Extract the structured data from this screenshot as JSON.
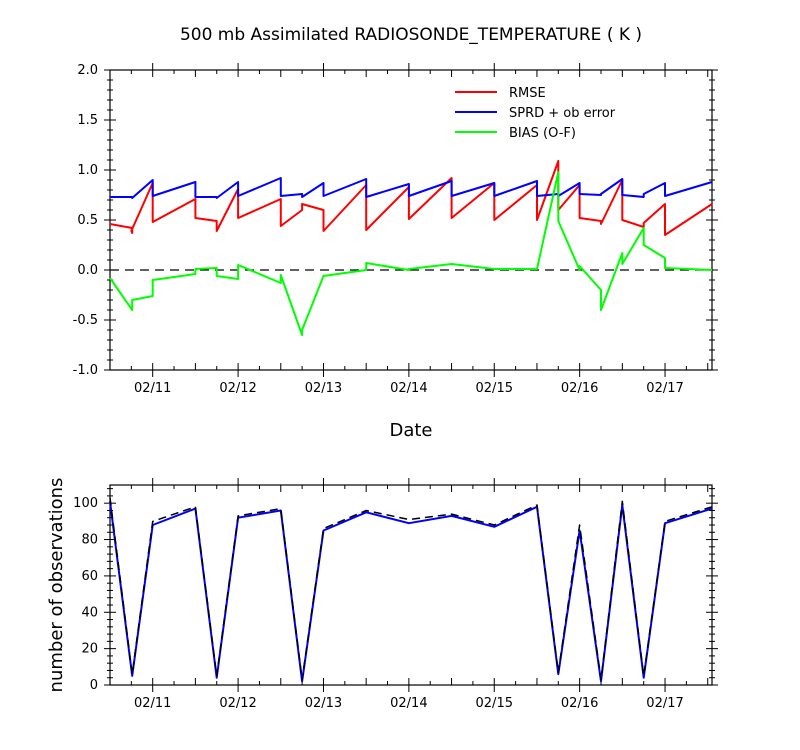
{
  "chart_data": [
    {
      "type": "line",
      "title": "500 mb Assimilated RADIOSONDE_TEMPERATURE ( K )",
      "xlabel": "Date",
      "ylabel": "",
      "ylim": [
        -1.0,
        2.0
      ],
      "yticks": [
        -1.0,
        -0.5,
        0.0,
        0.5,
        1.0,
        1.5,
        2.0
      ],
      "ytick_labels": [
        "-1.0",
        "-0.5",
        "0.0",
        "0.5",
        "1.0",
        "1.5",
        "2.0"
      ],
      "xlim": [
        0.5,
        7.55
      ],
      "xticks": [
        1,
        2,
        3,
        4,
        5,
        6,
        7
      ],
      "xtick_labels": [
        "02/11",
        "02/12",
        "02/13",
        "02/14",
        "02/15",
        "02/16",
        "02/17"
      ],
      "legend_position": "top-right",
      "zero_line": true,
      "series": [
        {
          "name": "RMSE",
          "color": "#ff0000",
          "x": [
            0.5,
            0.76,
            0.76,
            0.75,
            1.0,
            1.0,
            1.5,
            1.5,
            1.75,
            1.75,
            2.0,
            2.0,
            2.5,
            2.5,
            2.75,
            2.75,
            3.0,
            3.0,
            3.5,
            3.5,
            4.0,
            4.0,
            4.5,
            4.5,
            5.0,
            5.0,
            5.5,
            5.5,
            5.75,
            5.75,
            6.0,
            6.0,
            6.25,
            6.25,
            6.5,
            6.5,
            6.75,
            6.75,
            7.0,
            7.0,
            7.55
          ],
          "y": [
            0.46,
            0.42,
            0.37,
            0.39,
            0.87,
            0.48,
            0.71,
            0.52,
            0.49,
            0.39,
            0.81,
            0.52,
            0.71,
            0.44,
            0.6,
            0.66,
            0.6,
            0.39,
            0.85,
            0.4,
            0.83,
            0.51,
            0.92,
            0.52,
            0.87,
            0.5,
            0.85,
            0.5,
            1.09,
            0.6,
            0.85,
            0.52,
            0.49,
            0.46,
            0.9,
            0.5,
            0.43,
            0.47,
            0.66,
            0.35,
            0.66
          ]
        },
        {
          "name": "SPRD + ob error",
          "color": "#0000ff",
          "x": [
            0.5,
            0.76,
            0.76,
            1.0,
            1.0,
            1.5,
            1.5,
            1.75,
            1.75,
            2.0,
            2.0,
            2.5,
            2.5,
            2.75,
            2.75,
            3.0,
            3.0,
            3.5,
            3.5,
            4.0,
            4.0,
            4.5,
            4.5,
            5.0,
            5.0,
            5.5,
            5.5,
            5.75,
            5.75,
            6.0,
            6.0,
            6.25,
            6.25,
            6.5,
            6.5,
            6.75,
            6.75,
            7.0,
            7.0,
            7.55
          ],
          "y": [
            0.73,
            0.73,
            0.72,
            0.9,
            0.74,
            0.88,
            0.73,
            0.73,
            0.72,
            0.88,
            0.74,
            0.92,
            0.74,
            0.76,
            0.73,
            0.87,
            0.74,
            0.91,
            0.73,
            0.86,
            0.74,
            0.89,
            0.74,
            0.87,
            0.74,
            0.89,
            0.74,
            0.76,
            0.74,
            0.87,
            0.76,
            0.75,
            0.76,
            0.91,
            0.75,
            0.73,
            0.76,
            0.87,
            0.74,
            0.88
          ]
        },
        {
          "name": "BIAS (O-F)",
          "color": "#00ff00",
          "x": [
            0.5,
            0.76,
            0.76,
            1.0,
            1.0,
            1.5,
            1.5,
            1.75,
            1.75,
            2.0,
            2.0,
            2.5,
            2.5,
            2.75,
            2.75,
            3.0,
            3.0,
            3.5,
            3.5,
            4.0,
            4.0,
            4.5,
            4.5,
            5.0,
            5.0,
            5.5,
            5.5,
            5.75,
            5.75,
            6.0,
            6.0,
            6.25,
            6.25,
            6.5,
            6.5,
            6.75,
            6.75,
            7.0,
            7.0,
            7.55
          ],
          "y": [
            -0.08,
            -0.4,
            -0.3,
            -0.26,
            -0.1,
            -0.04,
            0.01,
            0.02,
            -0.06,
            -0.09,
            0.05,
            -0.13,
            -0.05,
            -0.65,
            -0.6,
            -0.06,
            -0.06,
            0.0,
            0.07,
            0.0,
            0.01,
            0.06,
            0.06,
            0.01,
            0.01,
            0.01,
            0.01,
            0.98,
            0.49,
            0.0,
            0.04,
            -0.2,
            -0.4,
            0.17,
            0.06,
            0.42,
            0.25,
            0.12,
            0.02,
            0.0
          ]
        }
      ]
    },
    {
      "type": "line",
      "title": "",
      "xlabel": "",
      "ylabel": "number of observations",
      "ylim": [
        0,
        110
      ],
      "yticks": [
        0,
        20,
        40,
        60,
        80,
        100
      ],
      "ytick_labels": [
        "0",
        "20",
        "40",
        "60",
        "80",
        "100"
      ],
      "xlim": [
        0.5,
        7.55
      ],
      "xticks": [
        1,
        2,
        3,
        4,
        5,
        6,
        7
      ],
      "xtick_labels": [
        "02/11",
        "02/12",
        "02/13",
        "02/14",
        "02/15",
        "02/16",
        "02/17"
      ],
      "series": [
        {
          "color": "#0000ff",
          "dashed": false,
          "x": [
            0.5,
            0.76,
            1.0,
            1.5,
            1.75,
            2.0,
            2.5,
            2.75,
            3.0,
            3.5,
            4.0,
            4.5,
            5.0,
            5.5,
            5.75,
            6.0,
            6.25,
            6.5,
            6.75,
            7.0,
            7.55
          ],
          "y": [
            101,
            5,
            88,
            97,
            4,
            92,
            96,
            2,
            85,
            95,
            89,
            93,
            87,
            98,
            6,
            85,
            2,
            99,
            4,
            89,
            97
          ]
        },
        {
          "color": "#000000",
          "dashed": true,
          "x": [
            0.5,
            0.76,
            1.0,
            1.5,
            1.75,
            2.0,
            2.5,
            2.75,
            3.0,
            3.5,
            4.0,
            4.5,
            5.0,
            5.5,
            5.75,
            6.0,
            6.25,
            6.5,
            6.75,
            7.0,
            7.55
          ],
          "y": [
            103,
            6,
            90,
            98,
            5,
            93,
            97,
            3,
            86,
            96,
            91,
            94,
            88,
            99,
            7,
            88,
            3,
            101,
            5,
            90,
            98
          ]
        }
      ]
    }
  ]
}
